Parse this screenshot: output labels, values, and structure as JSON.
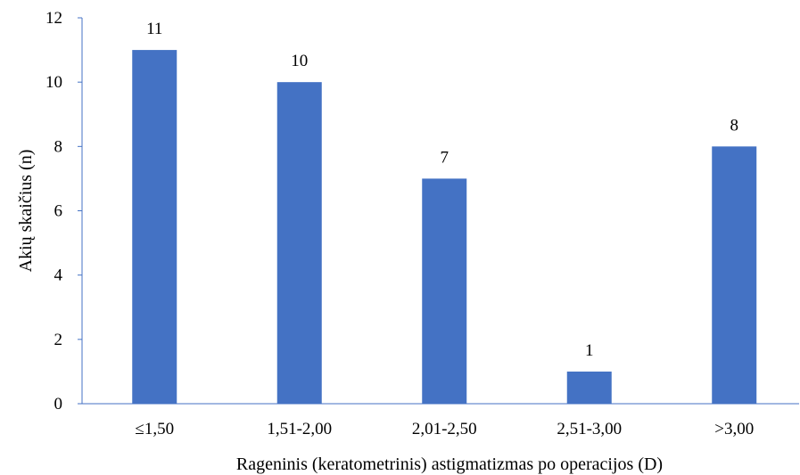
{
  "chart_data": {
    "type": "bar",
    "title": "",
    "xlabel": "Rageninis (keratometrinis) astigmatizmas po operacijos (D)",
    "ylabel": "Akių skaičius (n)",
    "categories": [
      "≤1,50",
      "1,51-2,00",
      "2,01-2,50",
      "2,51-3,00",
      ">3,00"
    ],
    "values": [
      11,
      10,
      7,
      1,
      8
    ],
    "data_labels": [
      "11",
      "10",
      "7",
      "1",
      "8"
    ],
    "y_ticks": [
      "0",
      "2",
      "4",
      "6",
      "8",
      "10",
      "12"
    ],
    "ylim": [
      0,
      12
    ],
    "grid": false,
    "legend": "none",
    "colors": {
      "bar": "#4472C4",
      "axis": "#4472C4",
      "text": "#000000"
    }
  }
}
